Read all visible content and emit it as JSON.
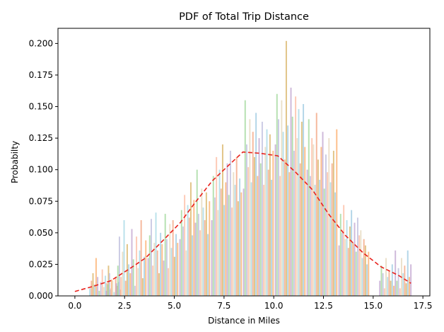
{
  "chart_data": {
    "type": "bar",
    "title": "PDF of Total Trip Distance",
    "xlabel": "Distance in Miles",
    "ylabel": "Probabilty",
    "xlim": [
      -0.85,
      17.85
    ],
    "ylim": [
      0,
      0.212
    ],
    "x_ticks": [
      0.0,
      2.5,
      5.0,
      7.5,
      10.0,
      12.5,
      15.0,
      17.5
    ],
    "x_tick_labels": [
      "0.0",
      "2.5",
      "5.0",
      "7.5",
      "10.0",
      "12.5",
      "15.0",
      "17.5"
    ],
    "y_ticks": [
      0.0,
      0.025,
      0.05,
      0.075,
      0.1,
      0.125,
      0.15,
      0.175,
      0.2
    ],
    "y_tick_labels": [
      "0.000",
      "0.025",
      "0.050",
      "0.075",
      "0.100",
      "0.125",
      "0.150",
      "0.175",
      "0.200"
    ],
    "grid": false,
    "bar_colors": [
      "#a6d8e6",
      "#f4a582",
      "#d8b365",
      "#9ecae1",
      "#fdae6b",
      "#c2a5cf",
      "#a1d99b",
      "#bcbddc",
      "#fcbba1",
      "#e5d8bd"
    ],
    "bar_clusters": [
      {
        "start": 0.72,
        "heights": [
          0.006,
          0.012,
          0.018,
          0.009,
          0.03,
          0.015,
          0.004,
          0.011,
          0.021,
          0.007,
          0.016,
          0.01,
          0.024,
          0.005,
          0.013
        ]
      },
      {
        "start": 1.55,
        "heights": [
          0.004,
          0.009,
          0.018,
          0.006,
          0.012,
          0.003,
          0.015,
          0.008,
          0.011,
          0.005
        ]
      },
      {
        "start": 2.05,
        "heights": [
          0.01,
          0.024,
          0.047,
          0.015,
          0.035,
          0.06,
          0.012,
          0.041,
          0.025,
          0.018,
          0.053,
          0.029,
          0.008,
          0.047,
          0.022,
          0.036,
          0.06,
          0.014,
          0.031,
          0.044
        ]
      },
      {
        "start": 3.65,
        "heights": [
          0.03,
          0.048,
          0.061,
          0.024,
          0.042,
          0.066,
          0.036,
          0.018,
          0.05,
          0.041,
          0.028,
          0.065,
          0.045,
          0.022,
          0.057,
          0.038,
          0.06,
          0.031,
          0.049,
          0.042
        ]
      },
      {
        "start": 5.25,
        "heights": [
          0.045,
          0.068,
          0.055,
          0.08,
          0.036,
          0.072,
          0.062,
          0.09,
          0.048,
          0.076,
          0.058,
          0.1,
          0.065,
          0.052,
          0.085,
          0.07,
          0.06,
          0.082,
          0.049,
          0.075
        ]
      },
      {
        "start": 6.85,
        "heights": [
          0.06,
          0.095,
          0.078,
          0.11,
          0.068,
          0.1,
          0.085,
          0.12,
          0.072,
          0.09,
          0.105,
          0.08,
          0.115,
          0.07,
          0.098,
          0.088,
          0.11,
          0.075,
          0.093,
          0.082
        ]
      },
      {
        "start": 8.45,
        "heights": [
          0.085,
          0.155,
          0.12,
          0.102,
          0.14,
          0.09,
          0.13,
          0.11,
          0.145,
          0.095,
          0.125,
          0.105,
          0.138,
          0.088,
          0.118,
          0.132,
          0.1,
          0.128,
          0.092,
          0.115
        ]
      },
      {
        "start": 10.05,
        "heights": [
          0.12,
          0.16,
          0.14,
          0.095,
          0.155,
          0.13,
          0.108,
          0.202,
          0.135,
          0.098,
          0.165,
          0.142,
          0.115,
          0.158,
          0.125,
          0.148,
          0.105,
          0.138,
          0.152,
          0.118
        ]
      },
      {
        "start": 11.65,
        "heights": [
          0.1,
          0.14,
          0.095,
          0.125,
          0.12,
          0.088,
          0.145,
          0.108,
          0.092,
          0.118,
          0.13,
          0.085,
          0.112,
          0.098,
          0.125,
          0.09,
          0.105,
          0.115,
          0.082,
          0.132
        ]
      },
      {
        "start": 13.25,
        "heights": [
          0.04,
          0.065,
          0.05,
          0.072,
          0.045,
          0.06,
          0.038,
          0.055,
          0.068,
          0.042,
          0.058,
          0.035,
          0.062,
          0.048,
          0.052,
          0.03,
          0.045,
          0.04,
          0.025,
          0.035
        ]
      },
      {
        "start": 15.3,
        "heights": [
          0.012,
          0.024,
          0.018,
          0.006,
          0.03,
          0.015,
          0.02,
          0.012,
          0.025,
          0.008,
          0.036,
          0.012,
          0.022,
          0.006,
          0.03,
          0.018,
          0.024,
          0.01,
          0.036,
          0.015,
          0.025
        ]
      }
    ],
    "series": [
      {
        "style": "dashed",
        "color": "#e8211c",
        "x": [
          0.0,
          0.9,
          1.8,
          2.7,
          3.55,
          4.5,
          5.3,
          6.0,
          6.9,
          7.7,
          8.45,
          9.3,
          10.2,
          11.1,
          11.95,
          12.75,
          13.6,
          14.5,
          15.4,
          16.3,
          16.9
        ],
        "y": [
          0.0035,
          0.0075,
          0.012,
          0.021,
          0.03,
          0.045,
          0.058,
          0.073,
          0.091,
          0.103,
          0.114,
          0.113,
          0.111,
          0.098,
          0.084,
          0.065,
          0.048,
          0.034,
          0.023,
          0.016,
          0.01
        ]
      }
    ]
  }
}
